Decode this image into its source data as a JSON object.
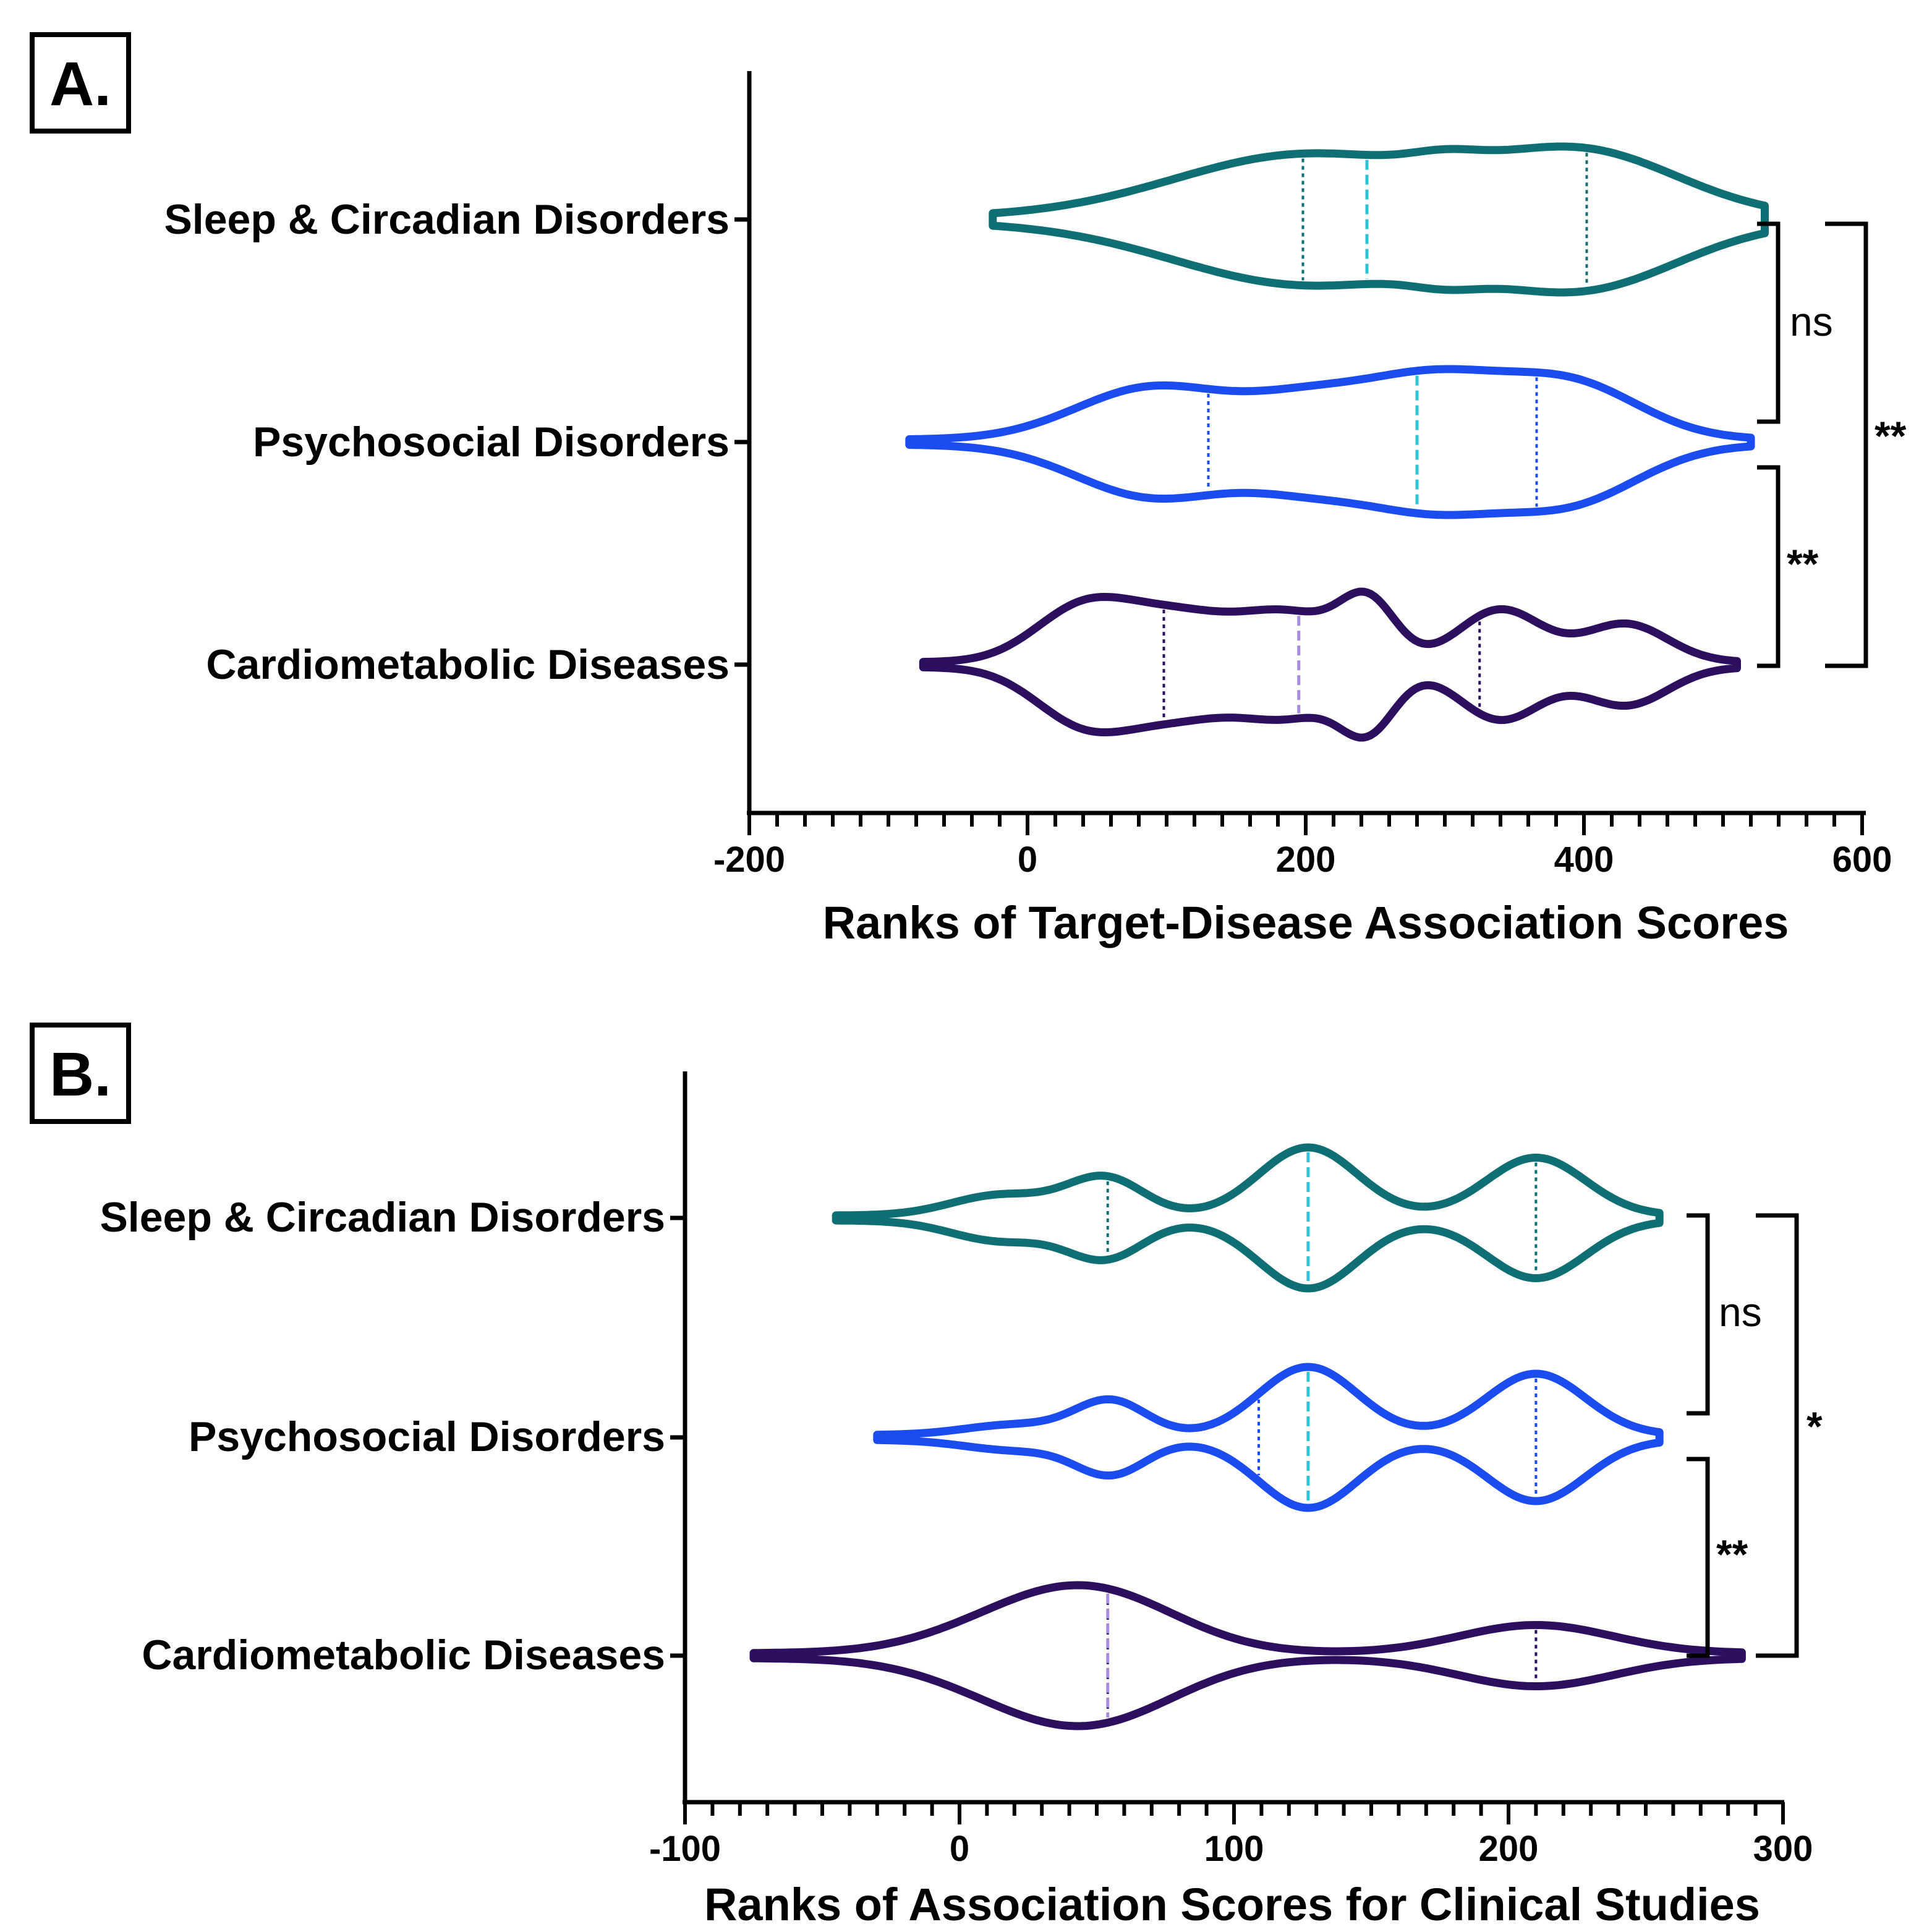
{
  "chart_data": [
    {
      "type": "violin",
      "panel_label": "A.",
      "xlabel": "Ranks of Target-Disease Association Scores",
      "xlim": [
        -200,
        600
      ],
      "xticks": [
        "-200",
        "0",
        "200",
        "400",
        "600"
      ],
      "categories": [
        "Sleep & Circadian Disorders",
        "Psychosocial Disorders",
        "Cardiometabolic Diseases"
      ],
      "series": [
        {
          "name": "Sleep & Circadian Disorders",
          "color": "#0f6f74",
          "median_color": "#2ec4d6",
          "range": [
            -25,
            530
          ],
          "peaks": [
            [
              200,
              1.0,
              95
            ],
            [
              400,
              1.0,
              70
            ],
            [
              300,
              0.15,
              25
            ]
          ],
          "quartiles": [
            198,
            244,
            402
          ]
        },
        {
          "name": "Psychosocial Disorders",
          "color": "#1a4cf0",
          "median_color": "#2ec4d6",
          "range": [
            -85,
            520
          ],
          "peaks": [
            [
              90,
              0.9,
              55
            ],
            [
              200,
              0.6,
              45
            ],
            [
              290,
              1.0,
              50
            ],
            [
              390,
              0.95,
              50
            ]
          ],
          "quartiles": [
            130,
            280,
            366
          ]
        },
        {
          "name": "Cardiometabolic Diseases",
          "color": "#2c0f5e",
          "median_color": "#a98be0",
          "range": [
            -75,
            510
          ],
          "peaks": [
            [
              40,
              0.8,
              35
            ],
            [
              110,
              0.68,
              40
            ],
            [
              190,
              0.68,
              35
            ],
            [
              245,
              0.85,
              20
            ],
            [
              340,
              0.8,
              30
            ],
            [
              430,
              0.58,
              30
            ]
          ],
          "quartiles": [
            98,
            195,
            325
          ]
        }
      ],
      "comparisons": [
        {
          "from": "Sleep & Circadian Disorders",
          "to": "Psychosocial Disorders",
          "label": "ns"
        },
        {
          "from": "Psychosocial Disorders",
          "to": "Cardiometabolic Diseases",
          "label": "**"
        },
        {
          "from": "Sleep & Circadian Disorders",
          "to": "Cardiometabolic Diseases",
          "label": "**"
        }
      ]
    },
    {
      "type": "violin",
      "panel_label": "B.",
      "xlabel": "Ranks of Association Scores for Clinical Studies",
      "xlim": [
        -100,
        300
      ],
      "xticks": [
        "-100",
        "0",
        "100",
        "200",
        "300"
      ],
      "categories": [
        "Sleep & Circadian Disorders",
        "Psychosocial Disorders",
        "Cardiometabolic Diseases"
      ],
      "series": [
        {
          "name": "Sleep & Circadian Disorders",
          "color": "#0f6f74",
          "median_color": "#2ec4d6",
          "range": [
            -45,
            255
          ],
          "peaks": [
            [
              15,
              0.3,
              18
            ],
            [
              53,
              0.55,
              14
            ],
            [
              127,
              1.0,
              18
            ],
            [
              210,
              0.85,
              18
            ]
          ],
          "quartiles": [
            54,
            127,
            210
          ]
        },
        {
          "name": "Psychosocial Disorders",
          "color": "#1a4cf0",
          "median_color": "#2ec4d6",
          "range": [
            -30,
            255
          ],
          "peaks": [
            [
              20,
              0.15,
              18
            ],
            [
              55,
              0.5,
              13
            ],
            [
              127,
              1.0,
              18
            ],
            [
              210,
              0.9,
              18
            ]
          ],
          "quartiles": [
            109,
            127,
            210
          ]
        },
        {
          "name": "Cardiometabolic Diseases",
          "color": "#2c0f5e",
          "median_color": "#a98be0",
          "range": [
            -75,
            285
          ],
          "peaks": [
            [
              20,
              0.5,
              30
            ],
            [
              52,
              1.0,
              30
            ],
            [
              210,
              0.55,
              28
            ]
          ],
          "quartiles": [
            54,
            54,
            210
          ]
        }
      ],
      "comparisons": [
        {
          "from": "Sleep & Circadian Disorders",
          "to": "Psychosocial Disorders",
          "label": "ns"
        },
        {
          "from": "Psychosocial Disorders",
          "to": "Cardiometabolic Diseases",
          "label": "**"
        },
        {
          "from": "Sleep & Circadian Disorders",
          "to": "Cardiometabolic Diseases",
          "label": "*"
        }
      ]
    }
  ]
}
